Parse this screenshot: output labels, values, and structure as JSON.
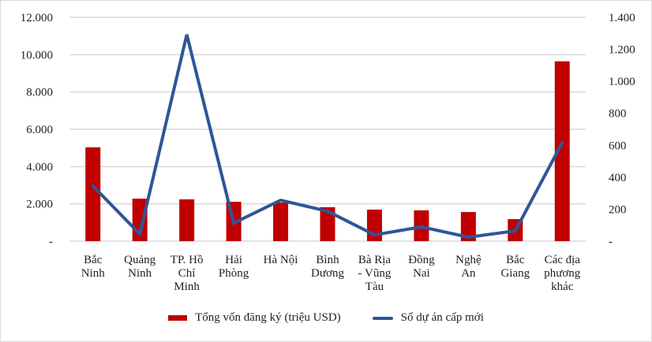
{
  "chart_data": {
    "type": "bar",
    "title": "",
    "categories": [
      "Bắc Ninh",
      "Quảng Ninh",
      "TP. Hồ Chí Minh",
      "Hải Phòng",
      "Hà Nội",
      "Bình Dương",
      "Bà Rịa - Vũng Tàu",
      "Đồng Nai",
      "Nghệ An",
      "Bắc Giang",
      "Các địa phương khác"
    ],
    "category_lines": [
      [
        "Bắc",
        "Ninh"
      ],
      [
        "Quảng",
        "Ninh"
      ],
      [
        "TP. Hồ",
        "Chí",
        "Minh"
      ],
      [
        "Hải",
        "Phòng"
      ],
      [
        "Hà Nội"
      ],
      [
        "Bình",
        "Dương"
      ],
      [
        "Bà Rịa",
        "- Vũng",
        "Tàu"
      ],
      [
        "Đồng",
        "Nai"
      ],
      [
        "Nghệ",
        "An"
      ],
      [
        "Bắc",
        "Giang"
      ],
      [
        "Các địa",
        "phương",
        "khác"
      ]
    ],
    "series": [
      {
        "name": "Tổng vốn đăng ký (triệu USD)",
        "type": "bar",
        "axis": "left",
        "color": "#C00000",
        "values": [
          5030,
          2280,
          2240,
          2110,
          2070,
          1820,
          1690,
          1650,
          1560,
          1180,
          9640
        ]
      },
      {
        "name": "Số dự án cấp mới",
        "type": "line",
        "axis": "right",
        "color": "#2F5597",
        "values": [
          345,
          44,
          1292,
          113,
          256,
          187,
          39,
          89,
          25,
          64,
          616
        ]
      }
    ],
    "left_axis": {
      "ylim": [
        0,
        12000
      ],
      "ticks": [
        "-",
        "2.000",
        "4.000",
        "6.000",
        "8.000",
        "10.000",
        "12.000"
      ]
    },
    "right_axis": {
      "ylim": [
        0,
        1400
      ],
      "ticks": [
        "-",
        "200",
        "400",
        "600",
        "800",
        "1.000",
        "1.200",
        "1.400"
      ]
    },
    "xlabel": "",
    "ylabel": "",
    "grid": true,
    "legend_position": "bottom"
  },
  "legend": {
    "bar_label": "Tổng vốn đăng ký (triệu USD)",
    "line_label": "Số dự án cấp mới"
  }
}
